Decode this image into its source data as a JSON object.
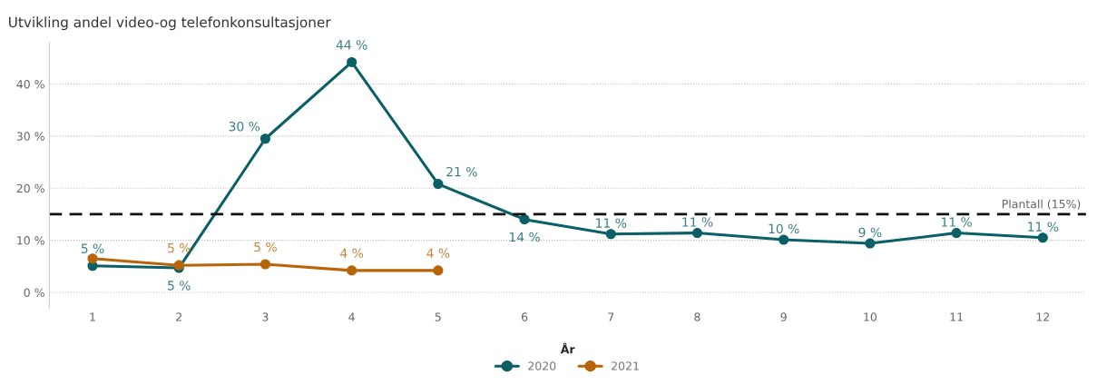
{
  "chart_data": {
    "type": "line",
    "title": "Utvikling andel video-og telefonkonsultasjoner",
    "categories": [
      "1",
      "2",
      "3",
      "4",
      "5",
      "6",
      "7",
      "8",
      "9",
      "10",
      "11",
      "12"
    ],
    "series": [
      {
        "name": "2020",
        "color": "#0b5f66",
        "values": [
          5.1,
          4.7,
          29.5,
          44.2,
          20.8,
          14.0,
          11.2,
          11.4,
          10.1,
          9.4,
          11.4,
          10.5
        ],
        "value_labels": [
          "5 %",
          "5 %",
          "30 %",
          "44 %",
          "21 %",
          "14 %",
          "11 %",
          "11 %",
          "10 %",
          "9 %",
          "11 %",
          "11 %"
        ]
      },
      {
        "name": "2021",
        "color": "#b8650a",
        "values": [
          6.5,
          5.2,
          5.4,
          4.2,
          4.2,
          null,
          null,
          null,
          null,
          null,
          null,
          null
        ],
        "value_labels": [
          null,
          "5 %",
          "5 %",
          "4 %",
          "4 %",
          null,
          null,
          null,
          null,
          null,
          null,
          null
        ]
      }
    ],
    "legend_title": "År",
    "legend": "bottom",
    "marker": "circle",
    "line_style": "solid",
    "grid": "y",
    "ylim": [
      -3,
      48
    ],
    "yticks": [
      {
        "value": 0,
        "label": "0 %"
      },
      {
        "value": 10,
        "label": "10 %"
      },
      {
        "value": 20,
        "label": "20 %"
      },
      {
        "value": 30,
        "label": "30 %"
      },
      {
        "value": 40,
        "label": "40 %"
      }
    ],
    "ref_lines": [
      {
        "axis": "y",
        "value": 15,
        "label": "Plantall (15%)",
        "color": "#111111",
        "line_style": "dashed"
      }
    ]
  }
}
